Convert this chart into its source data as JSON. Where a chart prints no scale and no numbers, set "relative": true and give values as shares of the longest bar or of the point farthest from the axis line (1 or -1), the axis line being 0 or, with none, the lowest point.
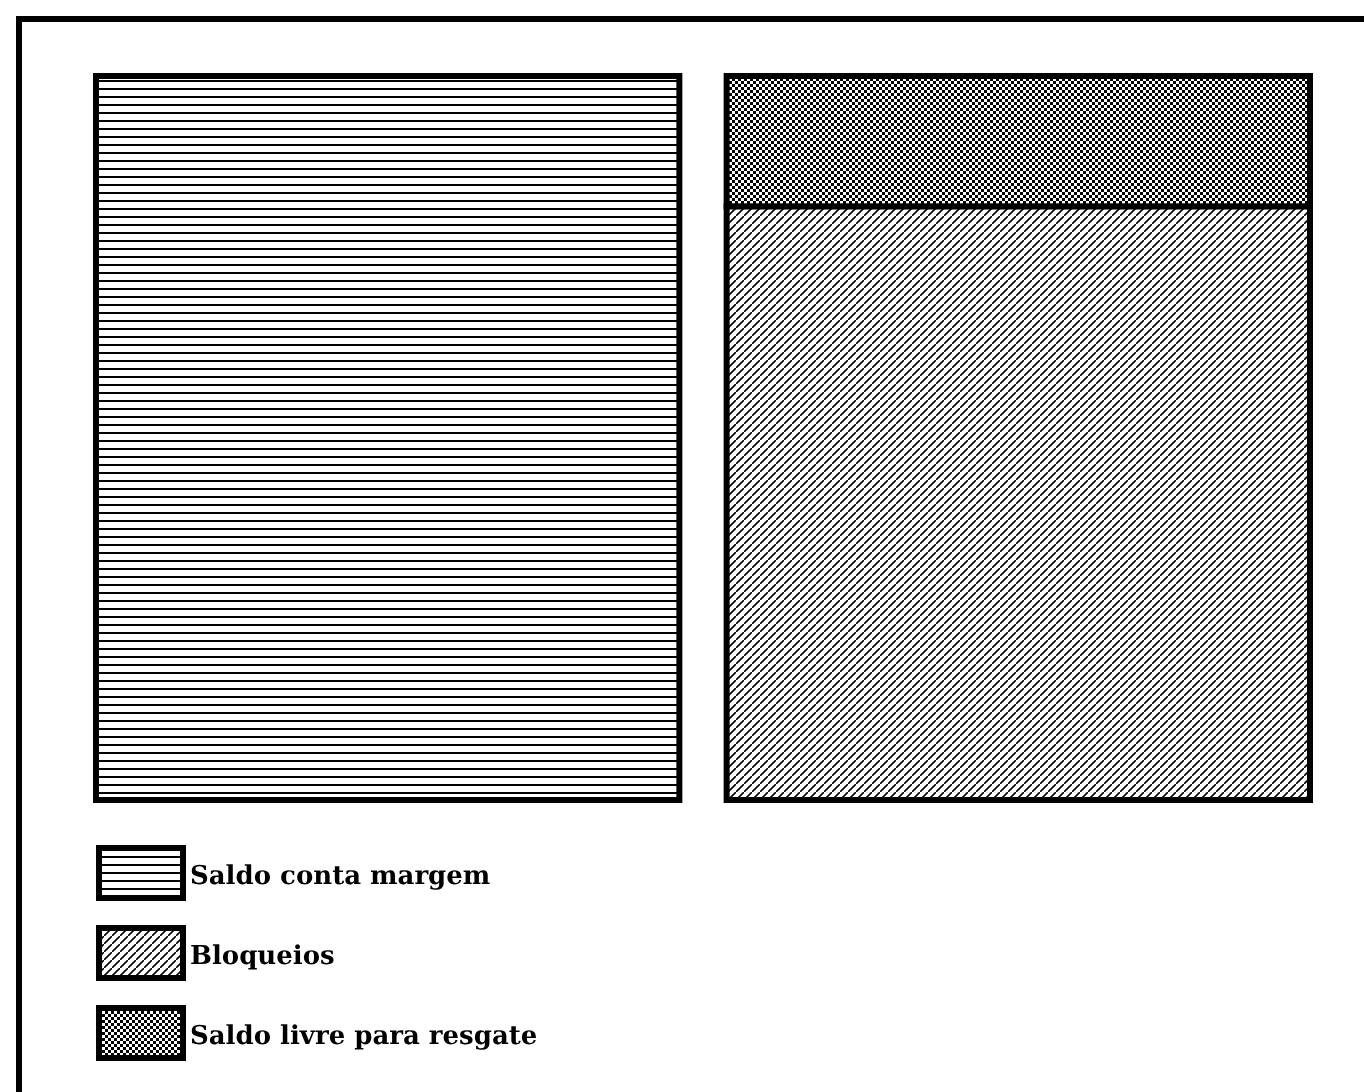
{
  "chart_data": {
    "type": "bar",
    "relative": true,
    "stacked": true,
    "categories": [
      null,
      null
    ],
    "legend": "bottom left",
    "series": [
      {
        "name": "Saldo conta margem",
        "color": "#000000",
        "values": [
          1,
          null
        ]
      },
      {
        "name": "Bloqueios",
        "color": "#000000",
        "values": [
          null,
          0.82
        ]
      },
      {
        "name": "Saldo livre para resgate",
        "color": "#000000",
        "values": [
          null,
          0.18
        ]
      }
    ]
  }
}
